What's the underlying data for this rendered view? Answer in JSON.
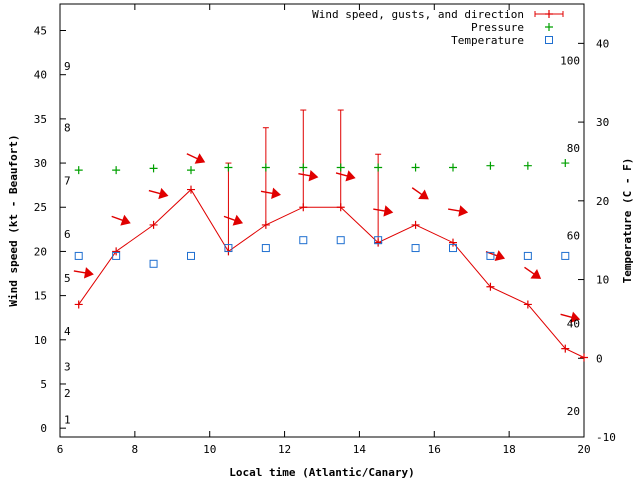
{
  "chart_data": {
    "type": "line",
    "xlabel": "Local time (Atlantic/Canary)",
    "ylabel": "Wind speed (kt - Beaufort)",
    "y2label": "Temperature (C - F)",
    "xlim": [
      6,
      20
    ],
    "ylim": [
      -1,
      48
    ],
    "y2lim": [
      -10,
      45
    ],
    "x_ticks": [
      6,
      8,
      10,
      12,
      14,
      16,
      18,
      20
    ],
    "y_ticks": [
      0,
      5,
      10,
      15,
      20,
      25,
      30,
      35,
      40,
      45
    ],
    "y2_ticks": [
      -10,
      0,
      10,
      20,
      30,
      40
    ],
    "beaufort_labels": [
      {
        "label": "1",
        "y": 1
      },
      {
        "label": "2",
        "y": 4
      },
      {
        "label": "3",
        "y": 7
      },
      {
        "label": "4",
        "y": 11
      },
      {
        "label": "5",
        "y": 17
      },
      {
        "label": "6",
        "y": 22
      },
      {
        "label": "7",
        "y": 28
      },
      {
        "label": "8",
        "y": 34
      },
      {
        "label": "9",
        "y": 41
      }
    ],
    "fahrenheit_labels": [
      {
        "label": "20",
        "temp": -6.7
      },
      {
        "label": "40",
        "temp": 4.4
      },
      {
        "label": "60",
        "temp": 15.6
      },
      {
        "label": "80",
        "temp": 26.7
      },
      {
        "label": "100",
        "temp": 37.8
      }
    ],
    "legend": {
      "placement": "top-right",
      "entries": [
        "Wind speed, gusts, and direction",
        "Pressure",
        "Temperature"
      ]
    },
    "series": [
      {
        "name": "Wind speed, gusts, and direction",
        "color": "#e00000",
        "x": [
          6.5,
          7.5,
          8.5,
          9.5,
          10.5,
          11.5,
          12.5,
          13.5,
          14.5,
          15.5,
          16.5,
          17.5,
          18.5,
          19.5,
          20
        ],
        "values": [
          14,
          20,
          23,
          27,
          20,
          23,
          25,
          25,
          21,
          23,
          21,
          16,
          14,
          9,
          8
        ],
        "gusts": [
          null,
          null,
          null,
          null,
          30,
          34,
          36,
          36,
          31,
          null,
          null,
          null,
          null,
          null,
          null
        ],
        "direction_deg": [
          100,
          110,
          105,
          115,
          110,
          100,
          100,
          105,
          100,
          125,
          100,
          110,
          125,
          105,
          null
        ]
      },
      {
        "name": "Pressure",
        "color": "#00a000",
        "x": [
          6.5,
          7.5,
          8.5,
          9.5,
          10.5,
          11.5,
          12.5,
          13.5,
          14.5,
          15.5,
          16.5,
          17.5,
          18.5,
          19.5
        ],
        "values": [
          29.2,
          29.2,
          29.4,
          29.2,
          29.5,
          29.5,
          29.5,
          29.5,
          29.5,
          29.5,
          29.5,
          29.7,
          29.7,
          30.0
        ]
      },
      {
        "name": "Temperature",
        "color": "#1f6fd0",
        "x": [
          6.5,
          7.5,
          8.5,
          9.5,
          10.5,
          11.5,
          12.5,
          13.5,
          14.5,
          15.5,
          16.5,
          17.5,
          18.5,
          19.5
        ],
        "values": [
          13,
          13,
          12,
          13,
          14,
          14,
          15,
          15,
          15,
          14,
          14,
          13,
          13,
          13
        ]
      }
    ]
  }
}
